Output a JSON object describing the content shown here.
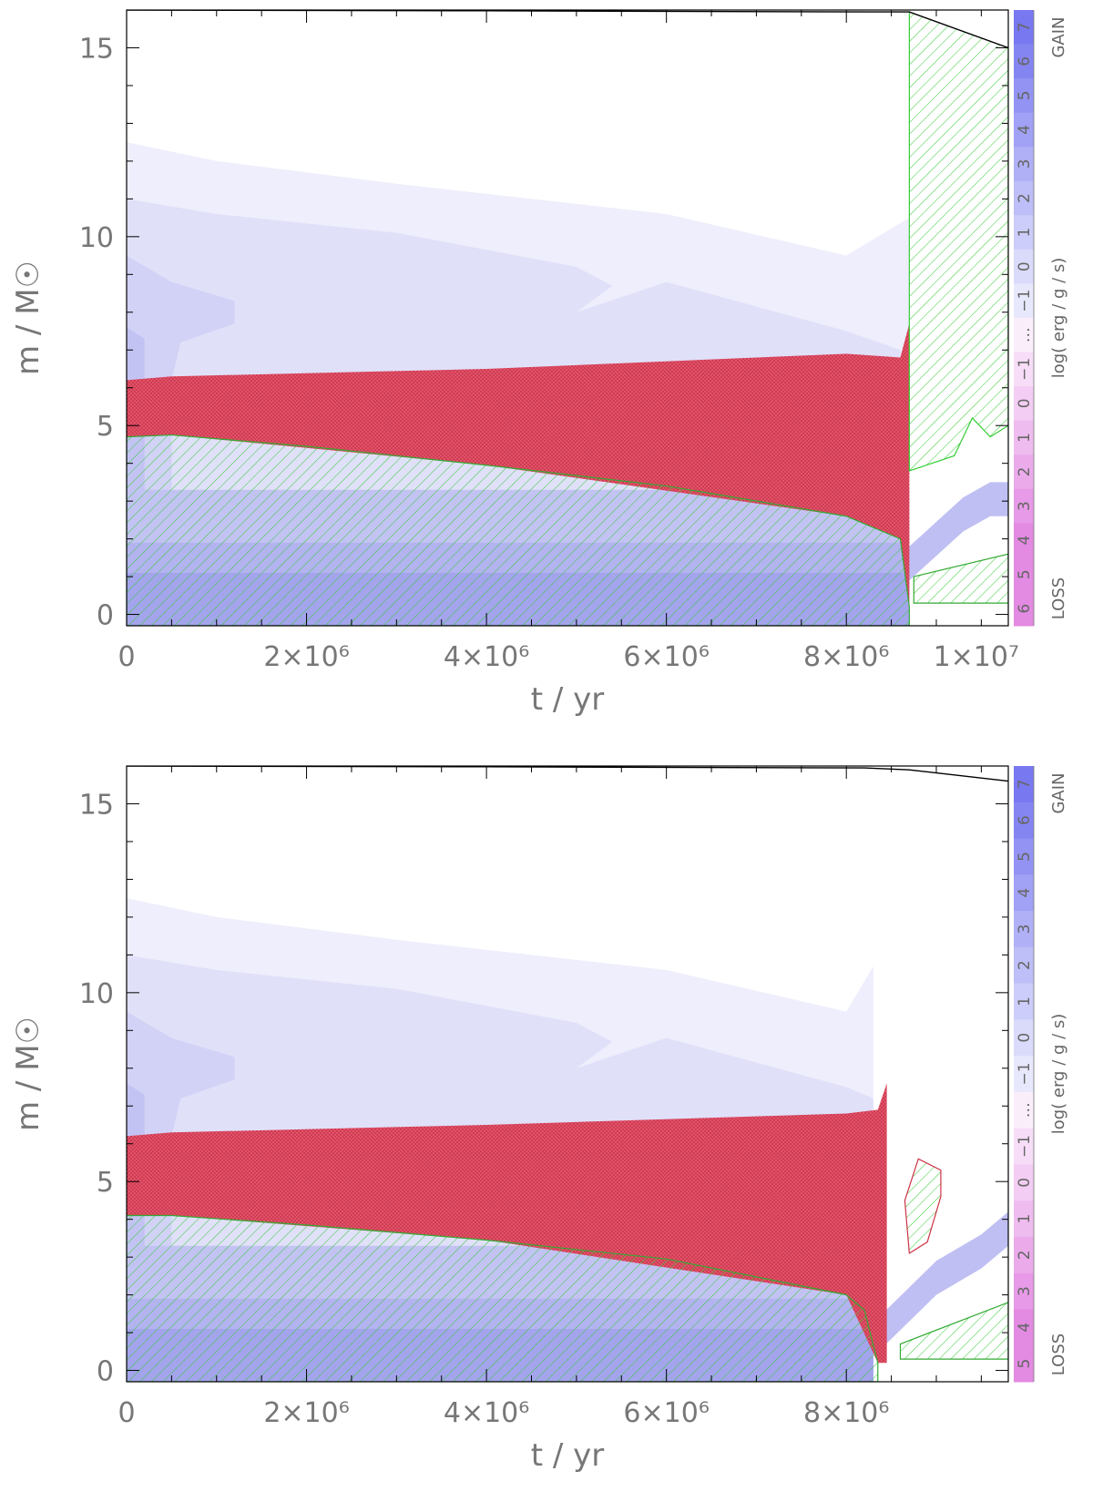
{
  "chart_data": [
    {
      "type": "area",
      "xlabel": "t / yr",
      "ylabel": "m / M☉",
      "xlim": [
        0,
        9800000
      ],
      "ylim": [
        -0.3,
        16
      ],
      "xticks": [
        {
          "value": 0,
          "label": "0"
        },
        {
          "value": 2000000,
          "label": "2×10⁶"
        },
        {
          "value": 4000000,
          "label": "4×10⁶"
        },
        {
          "value": 6000000,
          "label": "6×10⁶"
        },
        {
          "value": 8000000,
          "label": "8×10⁶"
        },
        {
          "value": 10000000,
          "label": "1×10⁷"
        }
      ],
      "yticks": [
        {
          "value": 0,
          "label": "0"
        },
        {
          "value": 5,
          "label": "5"
        },
        {
          "value": 10,
          "label": "10"
        },
        {
          "value": 15,
          "label": "15"
        }
      ],
      "total_mass": {
        "t": [
          0,
          4000000,
          8200000,
          8700000,
          9800000
        ],
        "m": [
          16,
          15.98,
          15.95,
          15.95,
          15.0
        ]
      },
      "energy_gain_layers": [
        {
          "level": -1,
          "t": [
            0,
            1000000,
            3000000,
            6000000,
            8000000,
            8700000
          ],
          "m": [
            12.5,
            12.0,
            11.4,
            10.6,
            9.5,
            10.5
          ]
        },
        {
          "level": 0,
          "t": [
            0,
            1000000,
            3000000,
            5000000,
            5400000,
            5000000,
            6000000,
            8000000,
            8600000
          ],
          "m": [
            11.0,
            10.6,
            10.1,
            9.2,
            8.7,
            8.0,
            8.8,
            7.5,
            7.0
          ]
        },
        {
          "level": 1,
          "t": [
            0,
            500000,
            1200000,
            1200000,
            600000,
            500000
          ],
          "m": [
            9.5,
            8.8,
            8.3,
            7.7,
            7.2,
            6.2
          ]
        },
        {
          "level": 2,
          "t": [
            0,
            200000,
            200000
          ],
          "m": [
            7.6,
            7.3,
            6.2
          ]
        }
      ],
      "core_layers": [
        {
          "level": 2,
          "t": [
            0,
            8700000
          ],
          "m": [
            3.3,
            3.3
          ]
        },
        {
          "level": 3,
          "t": [
            0,
            8700000
          ],
          "m": [
            1.9,
            1.9
          ]
        },
        {
          "level": 4,
          "t": [
            0,
            8700000
          ],
          "m": [
            1.1,
            1.1
          ]
        }
      ],
      "convective_core": {
        "t": [
          0,
          500000,
          2000000,
          4000000,
          6000000,
          8000000,
          8600000,
          8700000
        ],
        "m": [
          4.7,
          4.75,
          4.45,
          3.95,
          3.4,
          2.6,
          2.0,
          0.2
        ]
      },
      "burning_shell": {
        "t": [
          0,
          500000,
          4000000,
          8000000,
          8600000,
          8700000
        ],
        "m_top": [
          6.2,
          6.3,
          6.5,
          6.9,
          6.8,
          7.7
        ],
        "m_bottom": [
          4.7,
          4.75,
          3.95,
          2.6,
          2.0,
          0.2
        ]
      },
      "convective_envelope": {
        "t": [
          8700000,
          9200000,
          9400000,
          9600000,
          9800000
        ],
        "m_bottom": [
          3.8,
          4.2,
          5.2,
          4.7,
          5.0
        ],
        "m_top": [
          15.95,
          15.6,
          15.4,
          15.2,
          15.0
        ]
      },
      "late_core_convection": {
        "t": [
          8750000,
          9800000
        ],
        "m_top": [
          1.0,
          1.6
        ],
        "m_bottom": [
          0.3,
          0.3
        ]
      },
      "late_gain_tongue": {
        "t": [
          8700000,
          9300000,
          9600000,
          9800000
        ],
        "m": [
          1.8,
          3.1,
          3.5,
          3.5
        ]
      },
      "colorbar": {
        "labels": [
          "7",
          "6",
          "5",
          "4",
          "3",
          "2",
          "1",
          "0",
          "−1",
          "…",
          "−1",
          "0",
          "1",
          "2",
          "3",
          "4",
          "5",
          "6"
        ],
        "title": "log( erg / g / s)",
        "top_label": "GAIN",
        "bottom_label": "LOSS"
      }
    },
    {
      "type": "area",
      "xlabel": "t / yr",
      "ylabel": "m / M☉",
      "xlim": [
        0,
        9800000
      ],
      "ylim": [
        -0.3,
        16
      ],
      "xticks": [
        {
          "value": 0,
          "label": "0"
        },
        {
          "value": 2000000,
          "label": "2×10⁶"
        },
        {
          "value": 4000000,
          "label": "4×10⁶"
        },
        {
          "value": 6000000,
          "label": "6×10⁶"
        },
        {
          "value": 8000000,
          "label": "8×10⁶"
        }
      ],
      "yticks": [
        {
          "value": 0,
          "label": "0"
        },
        {
          "value": 5,
          "label": "5"
        },
        {
          "value": 10,
          "label": "10"
        },
        {
          "value": 15,
          "label": "15"
        }
      ],
      "total_mass": {
        "t": [
          0,
          4000000,
          8200000,
          8700000,
          9800000
        ],
        "m": [
          16,
          15.98,
          15.95,
          15.9,
          15.6
        ]
      },
      "energy_gain_layers": [
        {
          "level": -1,
          "t": [
            0,
            1000000,
            3000000,
            6000000,
            8000000,
            8300000
          ],
          "m": [
            12.5,
            12.0,
            11.4,
            10.6,
            9.5,
            10.7
          ]
        },
        {
          "level": 0,
          "t": [
            0,
            1000000,
            3000000,
            5000000,
            5400000,
            5000000,
            6000000,
            8000000,
            8300000
          ],
          "m": [
            11.0,
            10.6,
            10.1,
            9.2,
            8.7,
            8.0,
            8.8,
            7.5,
            7.2
          ]
        },
        {
          "level": 1,
          "t": [
            0,
            500000,
            1200000,
            1200000,
            600000,
            500000
          ],
          "m": [
            9.5,
            8.8,
            8.3,
            7.7,
            7.2,
            6.2
          ]
        },
        {
          "level": 2,
          "t": [
            0,
            200000,
            200000
          ],
          "m": [
            7.6,
            7.3,
            6.2
          ]
        }
      ],
      "core_layers": [
        {
          "level": 2,
          "t": [
            0,
            8300000
          ],
          "m": [
            3.3,
            3.3
          ]
        },
        {
          "level": 3,
          "t": [
            0,
            8300000
          ],
          "m": [
            1.9,
            1.9
          ]
        },
        {
          "level": 4,
          "t": [
            0,
            8300000
          ],
          "m": [
            1.1,
            1.1
          ]
        }
      ],
      "convective_core": {
        "t": [
          0,
          500000,
          2000000,
          4000000,
          6000000,
          8000000,
          8200000,
          8350000
        ],
        "m": [
          4.1,
          4.1,
          3.85,
          3.45,
          2.95,
          2.0,
          1.6,
          0.2
        ]
      },
      "burning_shell": {
        "t": [
          0,
          500000,
          4000000,
          8000000,
          8350000,
          8450000
        ],
        "m_top": [
          6.2,
          6.3,
          6.5,
          6.8,
          6.9,
          7.6
        ],
        "m_bottom": [
          4.1,
          4.1,
          3.45,
          2.0,
          0.2,
          0.2
        ]
      },
      "convective_pocket": {
        "t": [
          8650000,
          8800000,
          9050000,
          9050000,
          8900000,
          8700000
        ],
        "m": [
          4.5,
          5.6,
          5.3,
          4.6,
          3.4,
          3.1
        ]
      },
      "late_core_convection": {
        "t": [
          8600000,
          9800000
        ],
        "m_top": [
          0.7,
          1.8
        ],
        "m_bottom": [
          0.3,
          0.3
        ]
      },
      "late_gain_tongue": {
        "t": [
          8400000,
          9000000,
          9500000,
          9800000
        ],
        "m": [
          1.5,
          2.9,
          3.6,
          4.2
        ]
      },
      "colorbar": {
        "labels": [
          "7",
          "6",
          "5",
          "4",
          "3",
          "2",
          "1",
          "0",
          "−1",
          "…",
          "−1",
          "0",
          "1",
          "2",
          "3",
          "4",
          "5"
        ],
        "title": "log( erg / g / s)",
        "top_label": "GAIN",
        "bottom_label": "LOSS"
      }
    }
  ]
}
